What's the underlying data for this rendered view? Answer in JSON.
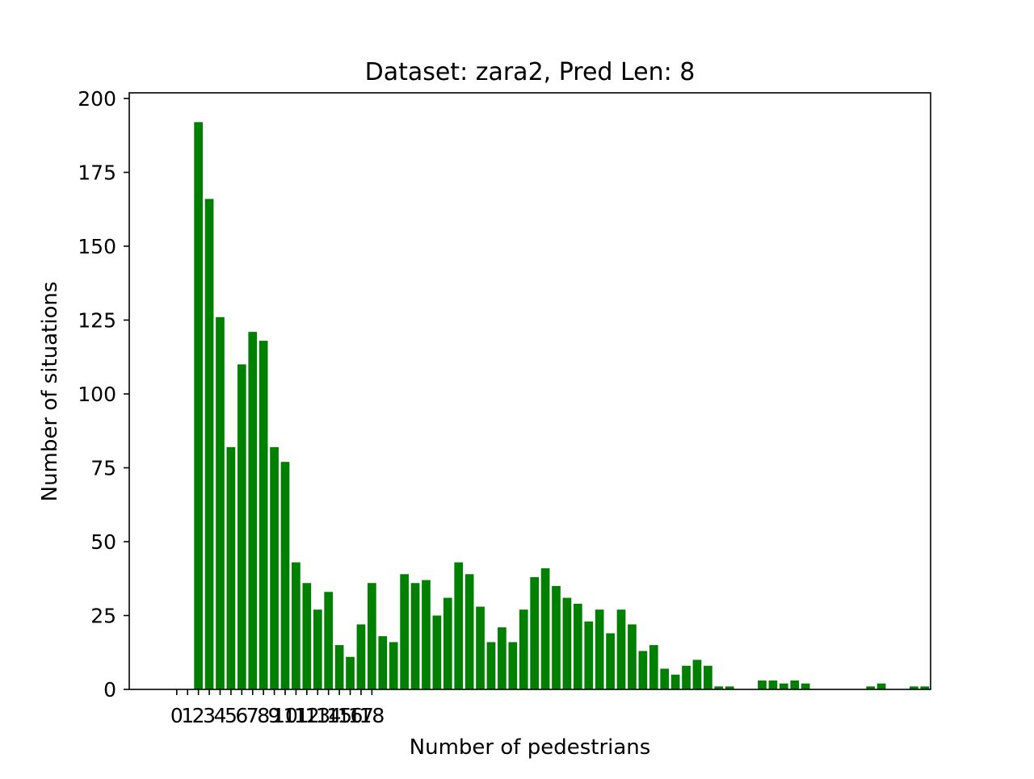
{
  "chart_data": {
    "type": "bar",
    "title": "Dataset: zara2, Pred Len: 8",
    "xlabel": "Number of pedestrians",
    "ylabel": "Number of situations",
    "x_tick_labels": [
      "0",
      "1",
      "2",
      "3",
      "4",
      "5",
      "6",
      "7",
      "8",
      "9",
      "10",
      "11",
      "12",
      "13",
      "14",
      "15",
      "16",
      "17",
      "18"
    ],
    "y_tick_labels": [
      "0",
      "25",
      "50",
      "75",
      "100",
      "125",
      "150",
      "175",
      "200"
    ],
    "ylim": [
      0,
      200
    ],
    "bar_color": "#008000",
    "x_start": 2,
    "values": [
      192,
      166,
      126,
      82,
      110,
      121,
      118,
      82,
      77,
      43,
      36,
      27,
      33,
      15,
      11,
      22,
      36,
      18,
      16,
      39,
      36,
      37,
      25,
      31,
      43,
      39,
      28,
      16,
      21,
      16,
      27,
      38,
      41,
      35,
      31,
      29,
      23,
      27,
      19,
      27,
      22,
      13,
      15,
      7,
      5,
      8,
      10,
      8,
      1,
      1,
      0,
      0,
      3,
      3,
      2,
      3,
      2,
      0,
      0,
      0,
      0,
      0,
      1,
      2,
      0,
      0,
      1,
      1
    ]
  }
}
